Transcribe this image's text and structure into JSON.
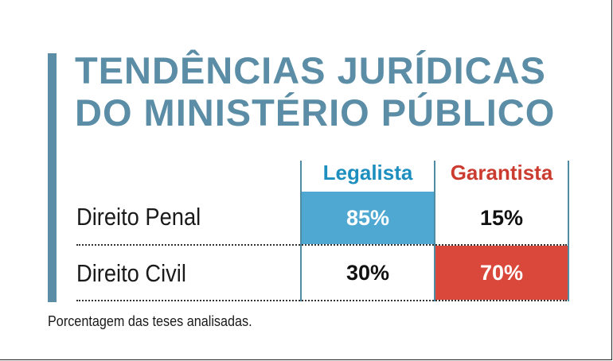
{
  "colors": {
    "accent": "#5b8ea6",
    "title": "#5b8ea6",
    "legalista": "#1d8fbf",
    "garantista": "#cc3b2f",
    "cell_blue": "#4fa8d2",
    "cell_red": "#d9483b"
  },
  "chart_data": {
    "type": "table",
    "title_lines": [
      "TENDÊNCIAS JURÍDICAS",
      "DO MINISTÉRIO PÚBLICO"
    ],
    "columns": [
      "Legalista",
      "Garantista"
    ],
    "rows": [
      {
        "label": "Direito Penal",
        "values": [
          85,
          15
        ],
        "display": [
          "85%",
          "15%"
        ],
        "highlight": 0
      },
      {
        "label": "Direito Civil",
        "values": [
          30,
          70
        ],
        "display": [
          "30%",
          "70%"
        ],
        "highlight": 1
      }
    ],
    "note": "Porcentagem das teses analisadas."
  }
}
